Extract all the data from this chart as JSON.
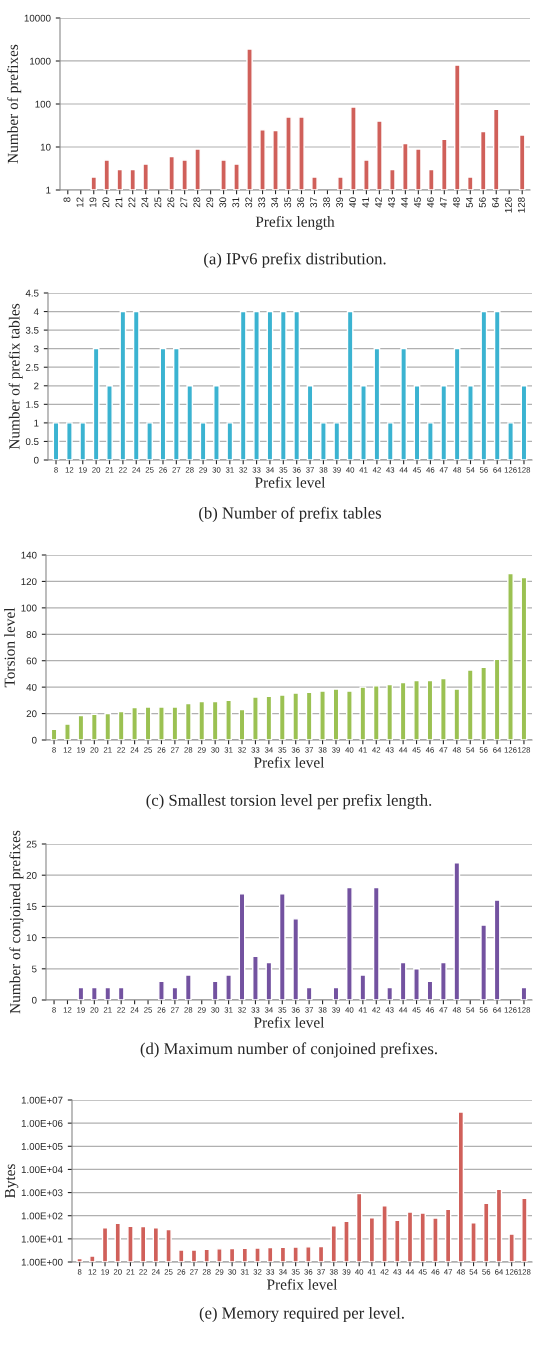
{
  "chart_data": [
    {
      "type": "bar",
      "title": "(a) IPv6 prefix distribution.",
      "xlabel": "Prefix length",
      "ylabel": "Number of prefixes",
      "log": "y",
      "grid": "y",
      "color": "#d0605a",
      "categories": [
        "8",
        "12",
        "19",
        "20",
        "21",
        "22",
        "24",
        "25",
        "26",
        "27",
        "28",
        "29",
        "30",
        "31",
        "32",
        "33",
        "34",
        "35",
        "36",
        "37",
        "38",
        "39",
        "40",
        "41",
        "42",
        "43",
        "44",
        "45",
        "46",
        "47",
        "48",
        "54",
        "56",
        "64",
        "126",
        "128"
      ],
      "values": [
        null,
        null,
        2,
        5,
        3,
        3,
        4,
        null,
        6,
        5,
        9,
        null,
        5,
        4,
        1900,
        25,
        24,
        50,
        50,
        2,
        null,
        2,
        85,
        5,
        40,
        3,
        12,
        9,
        3,
        15,
        800,
        2,
        23,
        75,
        null,
        19
      ],
      "ylim": [
        1,
        10000
      ],
      "yticks": [
        1,
        10,
        100,
        1000,
        10000
      ]
    },
    {
      "type": "bar",
      "title": "(b) Number of prefix tables",
      "xlabel": "Prefix level",
      "ylabel": "Number of prefix tables",
      "grid": "y",
      "color": "#3bb3d1",
      "categories": [
        "8",
        "12",
        "19",
        "20",
        "21",
        "22",
        "24",
        "25",
        "26",
        "27",
        "28",
        "29",
        "30",
        "31",
        "32",
        "33",
        "34",
        "35",
        "36",
        "37",
        "38",
        "39",
        "40",
        "41",
        "42",
        "43",
        "44",
        "45",
        "46",
        "47",
        "48",
        "54",
        "56",
        "64",
        "126",
        "128"
      ],
      "values": [
        1,
        1,
        1,
        3,
        2,
        4,
        4,
        1,
        3,
        3,
        2,
        1,
        2,
        1,
        4,
        4,
        4,
        4,
        4,
        2,
        1,
        1,
        4,
        2,
        3,
        1,
        3,
        2,
        1,
        2,
        3,
        2,
        4,
        4,
        1,
        2
      ],
      "ylim": [
        0,
        4.5
      ],
      "yticks": [
        0,
        0.5,
        1,
        1.5,
        2,
        2.5,
        3,
        3.5,
        4,
        4.5
      ]
    },
    {
      "type": "bar",
      "title": "(c) Smallest torsion level per prefix length.",
      "xlabel": "Prefix level",
      "ylabel": "Torsion level",
      "grid": "y",
      "color": "#9bc152",
      "categories": [
        "8",
        "12",
        "19",
        "20",
        "21",
        "22",
        "24",
        "25",
        "26",
        "27",
        "28",
        "29",
        "30",
        "31",
        "32",
        "33",
        "34",
        "35",
        "36",
        "37",
        "38",
        "39",
        "40",
        "41",
        "42",
        "43",
        "44",
        "45",
        "46",
        "47",
        "48",
        "54",
        "56",
        "64",
        "126",
        "128"
      ],
      "values": [
        8,
        12,
        18.5,
        19.5,
        20,
        21.5,
        24.5,
        25,
        25,
        25,
        27.5,
        29,
        29,
        30,
        23,
        32.5,
        33,
        34,
        35.5,
        36,
        37,
        38.5,
        37,
        40,
        41,
        42,
        43.5,
        45,
        45,
        46.5,
        38.5,
        53,
        55,
        61,
        126,
        123
      ],
      "ylim": [
        0,
        140
      ],
      "yticks": [
        0,
        20,
        40,
        60,
        80,
        100,
        120,
        140
      ]
    },
    {
      "type": "bar",
      "title": "(d) Maximum number of conjoined prefixes.",
      "xlabel": "Prefix level",
      "ylabel": "Number of conjoined prefixes",
      "grid": "y",
      "color": "#7352a0",
      "categories": [
        "8",
        "12",
        "19",
        "20",
        "21",
        "22",
        "24",
        "25",
        "26",
        "27",
        "28",
        "29",
        "30",
        "31",
        "32",
        "33",
        "34",
        "35",
        "36",
        "37",
        "38",
        "39",
        "40",
        "41",
        "42",
        "43",
        "44",
        "45",
        "46",
        "47",
        "48",
        "54",
        "56",
        "64",
        "126",
        "128"
      ],
      "values": [
        null,
        null,
        2,
        2,
        2,
        2,
        null,
        null,
        3,
        2,
        4,
        null,
        3,
        4,
        17,
        7,
        6,
        17,
        13,
        2,
        null,
        2,
        18,
        4,
        18,
        2,
        6,
        5,
        3,
        6,
        22,
        null,
        12,
        16,
        null,
        2
      ],
      "ylim": [
        0,
        25
      ],
      "yticks": [
        0,
        5,
        10,
        15,
        20,
        25
      ]
    },
    {
      "type": "bar",
      "title": "(e) Memory required per level.",
      "xlabel": "Prefix level",
      "ylabel": "Bytes",
      "log": "y",
      "grid": "y",
      "color": "#d0605a",
      "categories": [
        "8",
        "12",
        "19",
        "20",
        "21",
        "22",
        "24",
        "25",
        "26",
        "27",
        "28",
        "29",
        "30",
        "31",
        "32",
        "33",
        "34",
        "35",
        "36",
        "37",
        "38",
        "39",
        "40",
        "41",
        "42",
        "43",
        "44",
        "45",
        "46",
        "47",
        "48",
        "54",
        "56",
        "64",
        "126",
        "128"
      ],
      "values": [
        1.4,
        1.8,
        30,
        47,
        35,
        34,
        30,
        25,
        3.3,
        3.3,
        3.5,
        3.7,
        3.8,
        3.9,
        4,
        4.2,
        4.3,
        4.4,
        4.5,
        4.7,
        37,
        58,
        900,
        82,
        270,
        63,
        145,
        130,
        80,
        190,
        3000000,
        50,
        340,
        1400,
        16,
        560
      ],
      "ylim": [
        1,
        10000000
      ],
      "yticks": [
        {
          "value": 1,
          "label": "1.00E+00"
        },
        {
          "value": 10,
          "label": "1.00E+01"
        },
        {
          "value": 100,
          "label": "1.00E+02"
        },
        {
          "value": 1000,
          "label": "1.00E+03"
        },
        {
          "value": 10000,
          "label": "1.00E+04"
        },
        {
          "value": 100000,
          "label": "1.00E+05"
        },
        {
          "value": 1000000,
          "label": "1.00E+06"
        },
        {
          "value": 10000000,
          "label": "1.00E+07"
        }
      ]
    }
  ]
}
